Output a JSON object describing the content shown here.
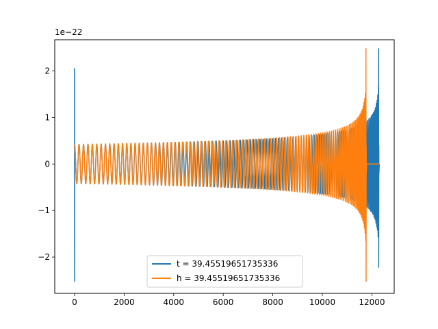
{
  "chart_data": {
    "type": "line",
    "title": "",
    "xlabel": "",
    "ylabel": "",
    "y_offset_label": "1e−22",
    "xlim": [
      -800,
      12900
    ],
    "ylim": [
      -2.78,
      2.67
    ],
    "xticks": [
      0,
      2000,
      4000,
      6000,
      8000,
      10000,
      12000
    ],
    "xtick_labels": [
      "0",
      "2000",
      "4000",
      "6000",
      "8000",
      "10000",
      "12000"
    ],
    "yticks": [
      -2,
      -1,
      0,
      1,
      2
    ],
    "ytick_labels": [
      "−2",
      "−1",
      "0",
      "1",
      "2"
    ],
    "grid": false,
    "legend_position": "lower center",
    "series": [
      {
        "name": "t = 39.45519651735336",
        "color": "#1f77b4",
        "waveform": {
          "start": 0,
          "end": 12270,
          "merger": 12270,
          "ringdown_end": 12300,
          "base_amplitude": 0.42,
          "peak_amplitude": 2.48,
          "min_value": -2.22,
          "edge_spike": [
            2.05,
            -2.52
          ],
          "trailing_zero_to": 12300
        }
      },
      {
        "name": "h = 39.45519651735336",
        "color": "#ff7f0e",
        "waveform": {
          "start": 0,
          "end": 11760,
          "merger": 11760,
          "ringdown_end": 11790,
          "base_amplitude": 0.42,
          "peak_amplitude": 2.48,
          "min_value": -2.52,
          "edge_spike": [
            0.0,
            0.0
          ],
          "trailing_zero_to": 12300
        }
      }
    ]
  }
}
